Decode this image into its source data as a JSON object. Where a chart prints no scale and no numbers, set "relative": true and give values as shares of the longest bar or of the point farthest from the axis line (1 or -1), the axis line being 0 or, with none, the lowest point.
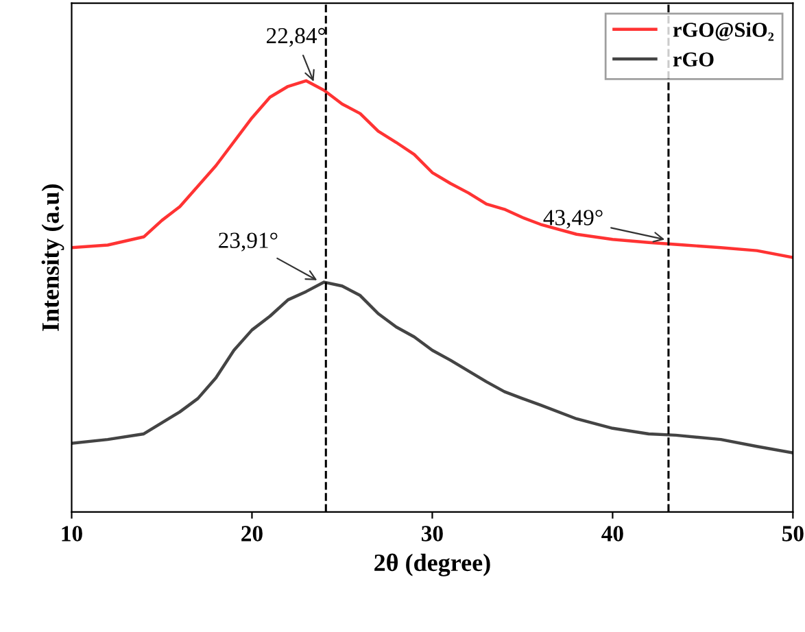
{
  "chart_data": {
    "type": "line",
    "xlabel": "2θ (degree)",
    "ylabel": "Intensity (a.u)",
    "relative": true,
    "xlim": [
      10,
      50
    ],
    "xticks": [
      10,
      20,
      30,
      40,
      50
    ],
    "legend": "top right",
    "grid": false,
    "marker": "none",
    "line_style": "solid",
    "series": [
      {
        "name": "rGO@SiO₂",
        "color": "#ff3333",
        "x": [
          10,
          12,
          14,
          15,
          16,
          18,
          20,
          21,
          22,
          23,
          24,
          25,
          26,
          27,
          28,
          29,
          30,
          31,
          32,
          33,
          34,
          35,
          36,
          38,
          40,
          42,
          44,
          46,
          48,
          50
        ],
        "values": [
          0.613,
          0.619,
          0.638,
          0.676,
          0.708,
          0.803,
          0.914,
          0.962,
          0.987,
          1.0,
          0.978,
          0.946,
          0.924,
          0.883,
          0.857,
          0.829,
          0.787,
          0.762,
          0.74,
          0.714,
          0.702,
          0.683,
          0.667,
          0.644,
          0.632,
          0.625,
          0.619,
          0.613,
          0.606,
          0.59
        ]
      },
      {
        "name": "rGO",
        "color": "#444444",
        "x": [
          10,
          12,
          14,
          16,
          17,
          18,
          19,
          20,
          21,
          22,
          23,
          24,
          25,
          26,
          27,
          28,
          29,
          30,
          31,
          32,
          33,
          34,
          35,
          36,
          38,
          40,
          42,
          43.5,
          46,
          48,
          50
        ],
        "values": [
          0.159,
          0.168,
          0.181,
          0.232,
          0.263,
          0.311,
          0.375,
          0.422,
          0.454,
          0.492,
          0.511,
          0.533,
          0.524,
          0.502,
          0.46,
          0.429,
          0.406,
          0.375,
          0.352,
          0.327,
          0.302,
          0.279,
          0.263,
          0.248,
          0.216,
          0.194,
          0.181,
          0.178,
          0.168,
          0.152,
          0.137
        ]
      }
    ],
    "ref_lines": [
      {
        "axis": "x",
        "value": 24.1,
        "color": "#000000",
        "line_style": "dashed"
      },
      {
        "axis": "x",
        "value": 43.1,
        "color": "#000000",
        "line_style": "dashed"
      }
    ],
    "annotations": [
      {
        "text": "22,84°",
        "x": 23.5,
        "y": 0.99
      },
      {
        "text": "23,91°",
        "x": 23.8,
        "y": 0.533
      },
      {
        "text": "43,49°",
        "x": 43.1,
        "y": 0.63
      }
    ]
  }
}
